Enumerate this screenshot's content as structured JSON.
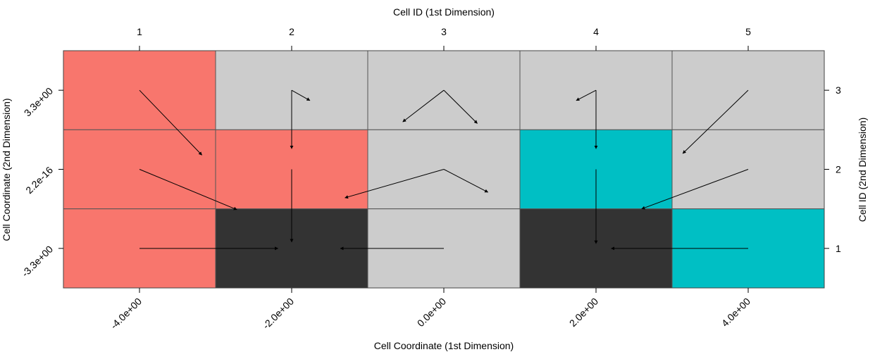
{
  "chart_data": {
    "type": "heatmap",
    "title": "",
    "xlabel_top": "Cell ID (1st Dimension)",
    "xlabel_bottom": "Cell Coordinate (1st Dimension)",
    "ylabel_left": "Cell Coordinate (2nd Dimension)",
    "ylabel_right": "Cell ID (2nd Dimension)",
    "top_ticks": [
      "1",
      "2",
      "3",
      "4",
      "5"
    ],
    "bottom_ticks": [
      "-4.0e+00",
      "-2.0e+00",
      "0.0e+00",
      "2.0e+00",
      "4.0e+00"
    ],
    "right_ticks": [
      "1",
      "2",
      "3"
    ],
    "left_ticks": [
      "-3.3e+00",
      "2.2e-16",
      "3.3e+00"
    ],
    "xlim": [
      0.5,
      5.5
    ],
    "ylim": [
      0.5,
      3.5
    ],
    "colors": {
      "red": "#F8766D",
      "gray": "#CCCCCC",
      "dark": "#333333",
      "teal": "#00BFC4",
      "grid": "#555555"
    },
    "cells": [
      {
        "x": 1,
        "y": 3,
        "color": "red"
      },
      {
        "x": 2,
        "y": 3,
        "color": "gray"
      },
      {
        "x": 3,
        "y": 3,
        "color": "gray"
      },
      {
        "x": 4,
        "y": 3,
        "color": "gray"
      },
      {
        "x": 5,
        "y": 3,
        "color": "gray"
      },
      {
        "x": 1,
        "y": 2,
        "color": "red"
      },
      {
        "x": 2,
        "y": 2,
        "color": "red"
      },
      {
        "x": 3,
        "y": 2,
        "color": "gray"
      },
      {
        "x": 4,
        "y": 2,
        "color": "teal"
      },
      {
        "x": 5,
        "y": 2,
        "color": "gray"
      },
      {
        "x": 1,
        "y": 1,
        "color": "red"
      },
      {
        "x": 2,
        "y": 1,
        "color": "dark"
      },
      {
        "x": 3,
        "y": 1,
        "color": "gray"
      },
      {
        "x": 4,
        "y": 1,
        "color": "dark"
      },
      {
        "x": 5,
        "y": 1,
        "color": "teal"
      }
    ],
    "arrows": [
      {
        "x0": 1,
        "y0": 3,
        "x1": 1.41,
        "y1": 2.18
      },
      {
        "x0": 2,
        "y0": 3,
        "x1": 2,
        "y1": 2.26
      },
      {
        "x0": 2,
        "y0": 3,
        "x1": 2.12,
        "y1": 2.87
      },
      {
        "x0": 3,
        "y0": 3,
        "x1": 2.73,
        "y1": 2.6
      },
      {
        "x0": 3,
        "y0": 3,
        "x1": 3.22,
        "y1": 2.58
      },
      {
        "x0": 4,
        "y0": 3,
        "x1": 4,
        "y1": 2.26
      },
      {
        "x0": 4,
        "y0": 3,
        "x1": 3.87,
        "y1": 2.87
      },
      {
        "x0": 5,
        "y0": 3,
        "x1": 4.57,
        "y1": 2.2
      },
      {
        "x0": 1,
        "y0": 2,
        "x1": 1.64,
        "y1": 1.49
      },
      {
        "x0": 2,
        "y0": 2,
        "x1": 2,
        "y1": 1.08
      },
      {
        "x0": 3,
        "y0": 2,
        "x1": 2.35,
        "y1": 1.64
      },
      {
        "x0": 3,
        "y0": 2,
        "x1": 3.29,
        "y1": 1.71
      },
      {
        "x0": 4,
        "y0": 2,
        "x1": 4,
        "y1": 1.06
      },
      {
        "x0": 5,
        "y0": 2,
        "x1": 4.3,
        "y1": 1.5
      },
      {
        "x0": 1,
        "y0": 1,
        "x1": 1.91,
        "y1": 1
      },
      {
        "x0": 3,
        "y0": 1,
        "x1": 2.32,
        "y1": 1
      },
      {
        "x0": 5,
        "y0": 1,
        "x1": 4.1,
        "y1": 1
      }
    ]
  }
}
